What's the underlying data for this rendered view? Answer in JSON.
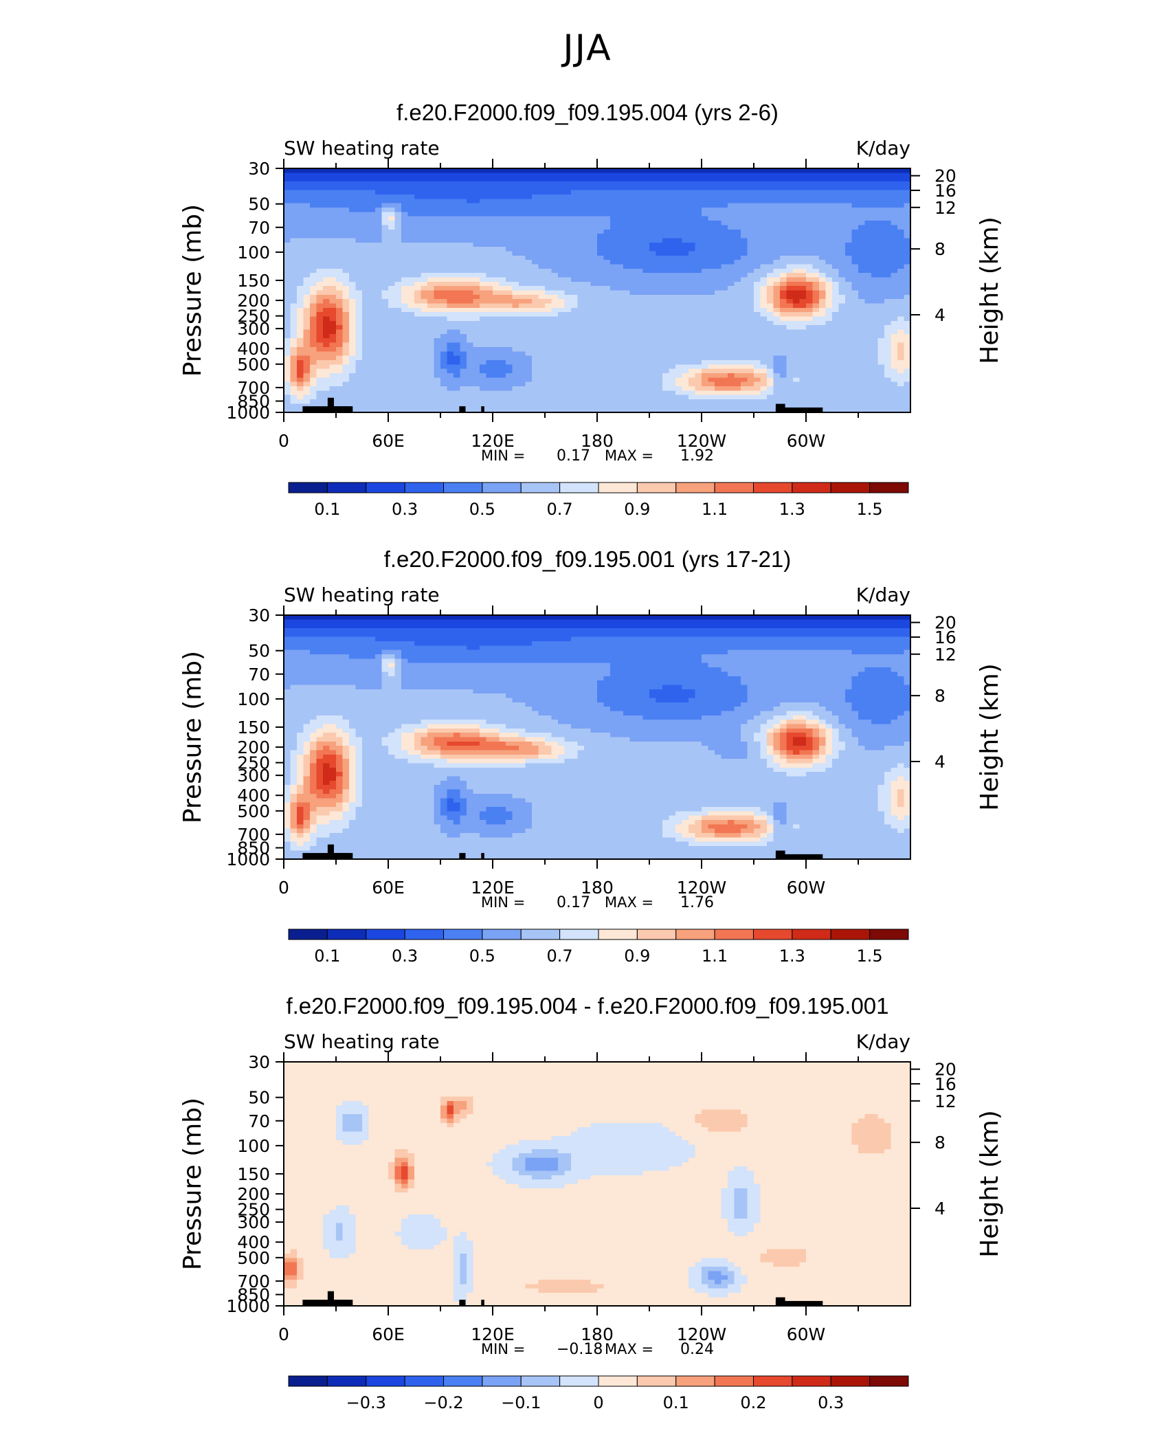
{
  "main_title": "JJA",
  "colors": {
    "palette": [
      "#0a1f8f",
      "#0d2cb8",
      "#1b47e0",
      "#2f63ee",
      "#4a80f2",
      "#7aa2f5",
      "#a7c4f6",
      "#d2e3fb",
      "#fde7d6",
      "#fbc9ad",
      "#f7a17d",
      "#f27653",
      "#e6492e",
      "#cf2b18",
      "#ab1507",
      "#7d0a05"
    ],
    "black": "#000000"
  },
  "chart_data": [
    {
      "type": "heatmap",
      "title": "f.e20.F2000.f09_f09.195.004 (yrs 2-6)",
      "left_label": "SW heating rate",
      "right_label": "K/day",
      "ylabel": "Pressure (mb)",
      "ylabel_right": "Height (km)",
      "pressure_ticks": [
        "30",
        "50",
        "70",
        "100",
        "150",
        "200",
        "250",
        "300",
        "400",
        "500",
        "700",
        "850",
        "1000"
      ],
      "height_ticks": [
        "20",
        "16",
        "12",
        "8",
        "4"
      ],
      "x_ticks": [
        "0",
        "60E",
        "120E",
        "180",
        "120W",
        "60W"
      ],
      "stats": {
        "min_label": "MIN =",
        "min": "0.17",
        "max_label": "MAX =",
        "max": "1.92"
      },
      "colorbar_labels": [
        "0.1",
        "0.3",
        "0.5",
        "0.7",
        "0.9",
        "1.1",
        "1.3",
        "1.5"
      ],
      "field": "total"
    },
    {
      "type": "heatmap",
      "title": "f.e20.F2000.f09_f09.195.001 (yrs 17-21)",
      "left_label": "SW heating rate",
      "right_label": "K/day",
      "ylabel": "Pressure (mb)",
      "ylabel_right": "Height (km)",
      "pressure_ticks": [
        "30",
        "50",
        "70",
        "100",
        "150",
        "200",
        "250",
        "300",
        "400",
        "500",
        "700",
        "850",
        "1000"
      ],
      "height_ticks": [
        "20",
        "16",
        "12",
        "8",
        "4"
      ],
      "x_ticks": [
        "0",
        "60E",
        "120E",
        "180",
        "120W",
        "60W"
      ],
      "stats": {
        "min_label": "MIN =",
        "min": "0.17",
        "max_label": "MAX =",
        "max": "1.76"
      },
      "colorbar_labels": [
        "0.1",
        "0.3",
        "0.5",
        "0.7",
        "0.9",
        "1.1",
        "1.3",
        "1.5"
      ],
      "field": "total"
    },
    {
      "type": "heatmap",
      "title": "f.e20.F2000.f09_f09.195.004 - f.e20.F2000.f09_f09.195.001",
      "left_label": "SW heating rate",
      "right_label": "K/day",
      "ylabel": "Pressure (mb)",
      "ylabel_right": "Height (km)",
      "pressure_ticks": [
        "30",
        "50",
        "70",
        "100",
        "150",
        "200",
        "250",
        "300",
        "400",
        "500",
        "700",
        "850",
        "1000"
      ],
      "height_ticks": [
        "20",
        "16",
        "12",
        "8",
        "4"
      ],
      "x_ticks": [
        "0",
        "60E",
        "120E",
        "180",
        "120W",
        "60W"
      ],
      "stats": {
        "min_label": "MIN =",
        "min": "−0.18",
        "max_label": "MAX =",
        "max": "0.24"
      },
      "colorbar_labels": [
        "−0.3",
        "−0.2",
        "−0.1",
        "0",
        "0.1",
        "0.2",
        "0.3"
      ],
      "field": "difference"
    }
  ]
}
